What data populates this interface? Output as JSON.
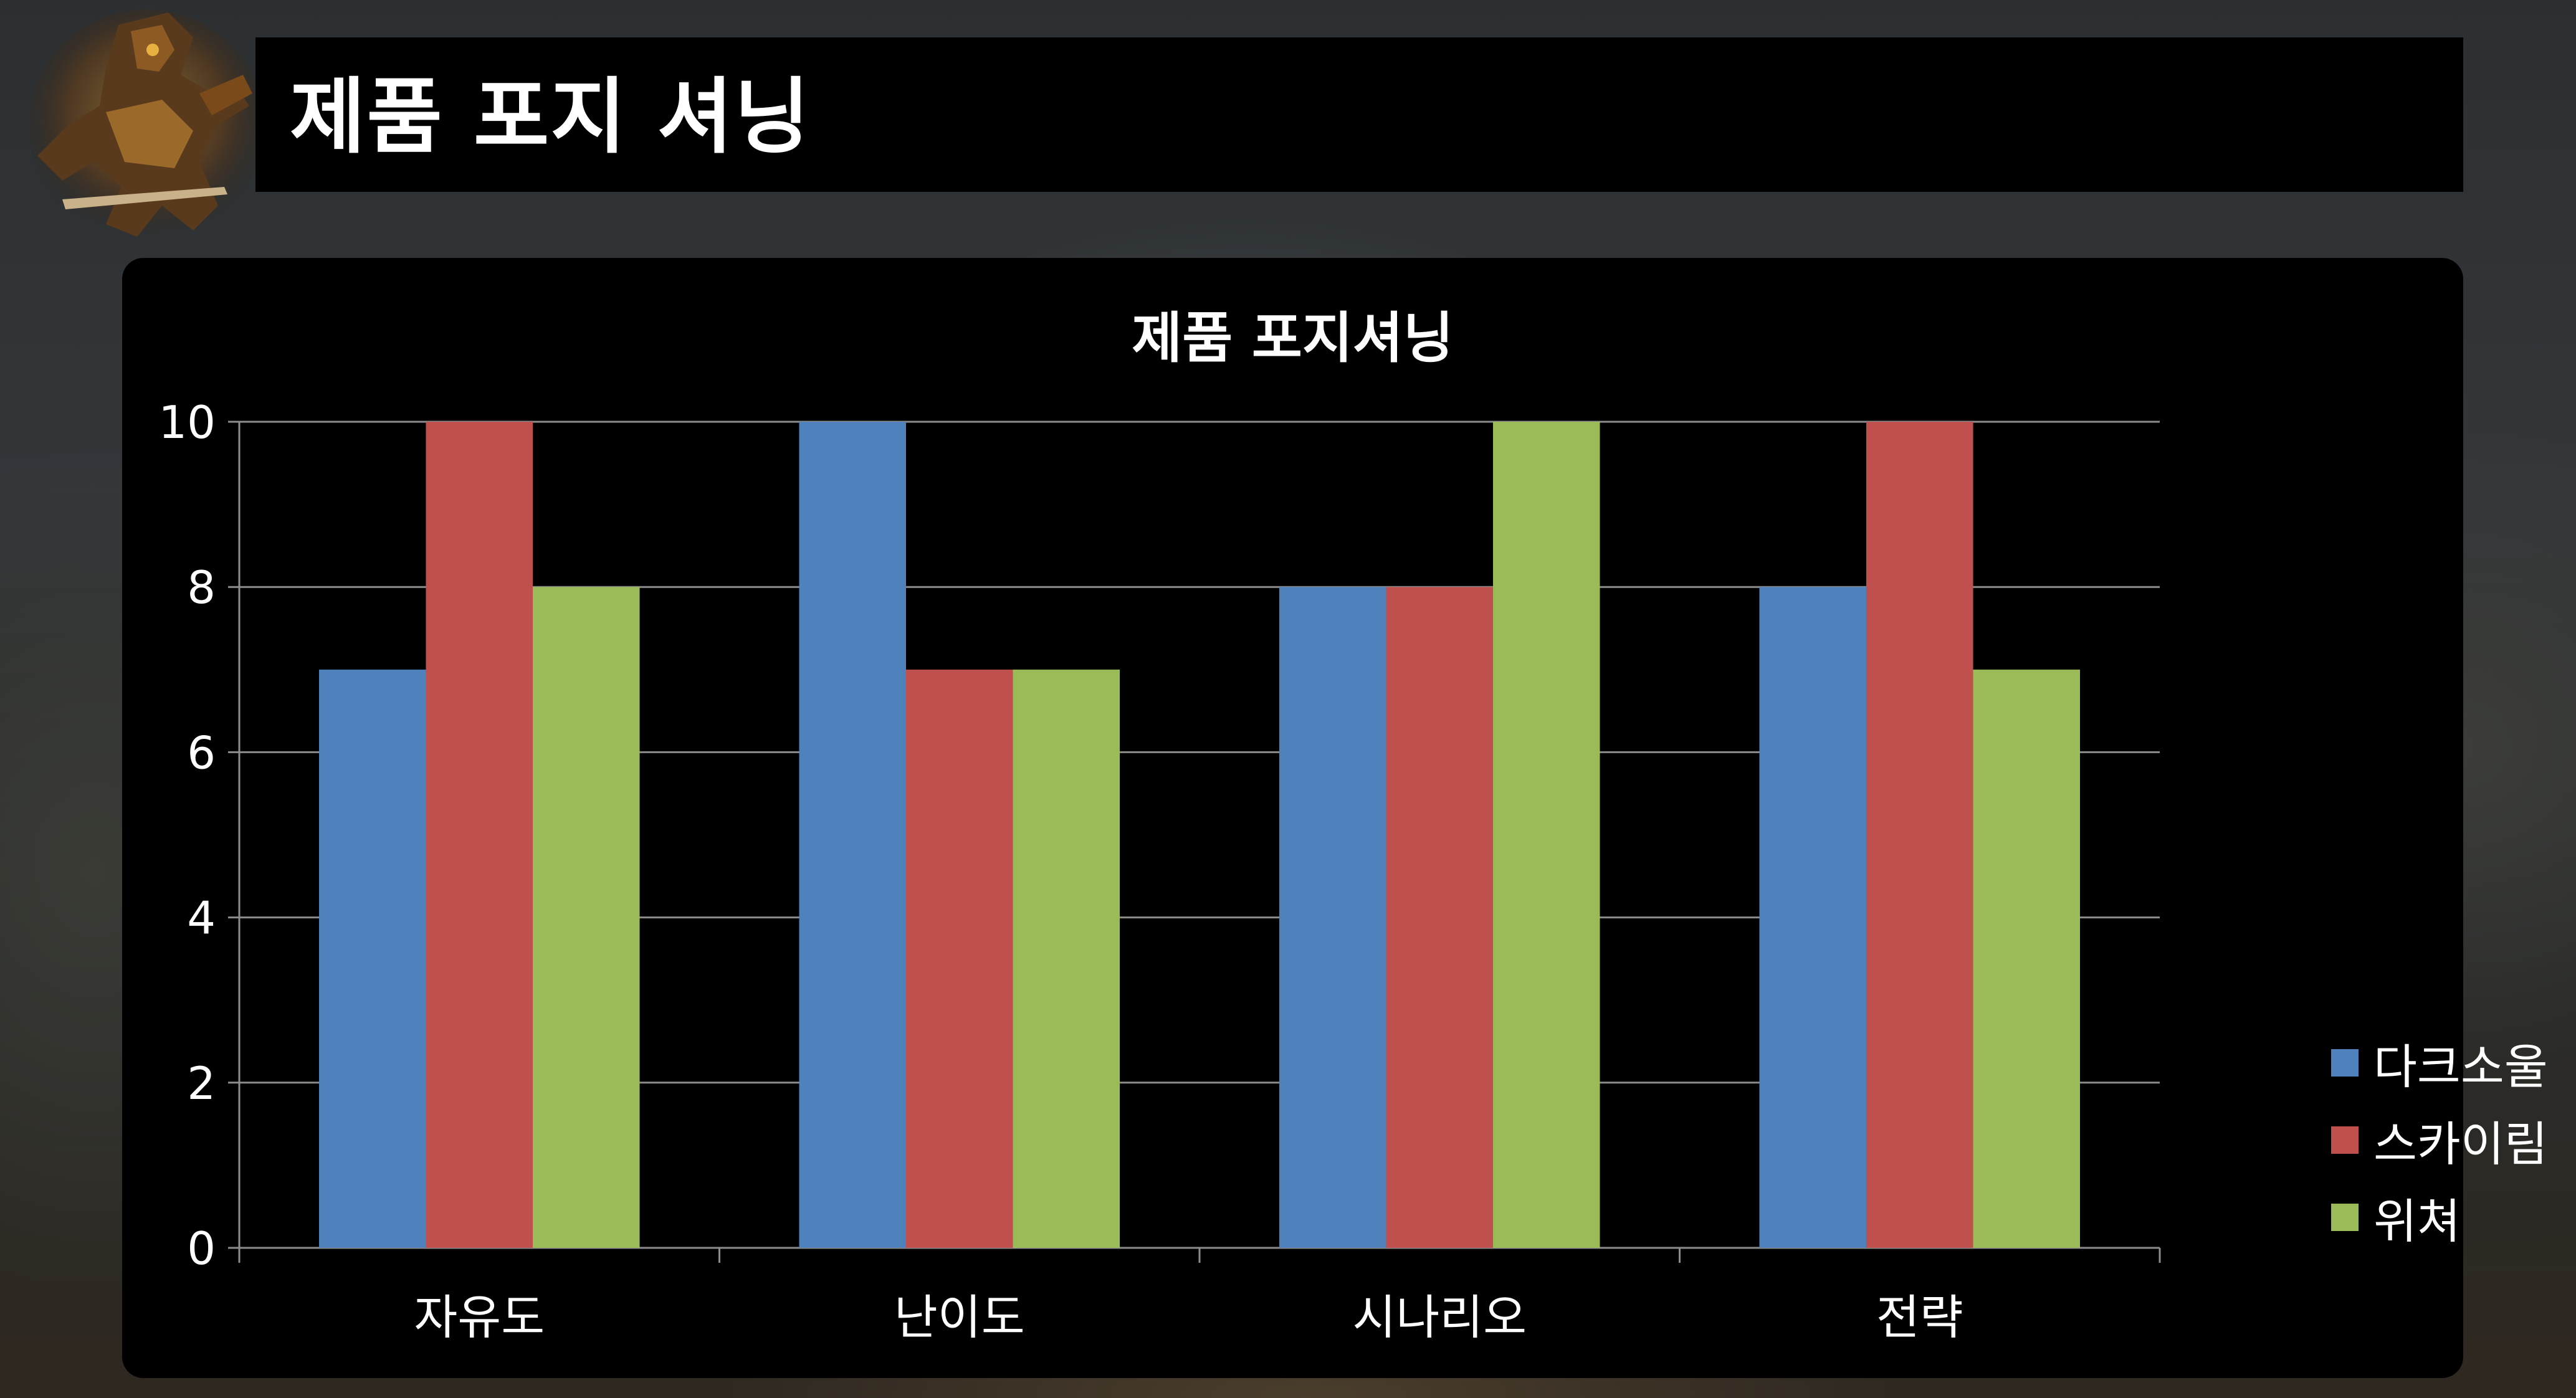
{
  "header": {
    "title": "제품 포지 셔닝"
  },
  "chart_data": {
    "type": "bar",
    "title": "제품 포지셔닝",
    "categories": [
      "자유도",
      "난이도",
      "시나리오",
      "전략"
    ],
    "series": [
      {
        "name": "다크소울",
        "values": [
          7,
          10,
          8,
          8
        ],
        "color": "#4f81bd"
      },
      {
        "name": "스카이림",
        "values": [
          10,
          7,
          8,
          10
        ],
        "color": "#c0504d"
      },
      {
        "name": "위쳐",
        "values": [
          8,
          7,
          10,
          7
        ],
        "color": "#9bbb59"
      }
    ],
    "ylim": [
      0,
      10
    ],
    "yticks": [
      0,
      2,
      4,
      6,
      8,
      10
    ],
    "xlabel": "",
    "ylabel": "",
    "grid": true,
    "legend": "right"
  }
}
